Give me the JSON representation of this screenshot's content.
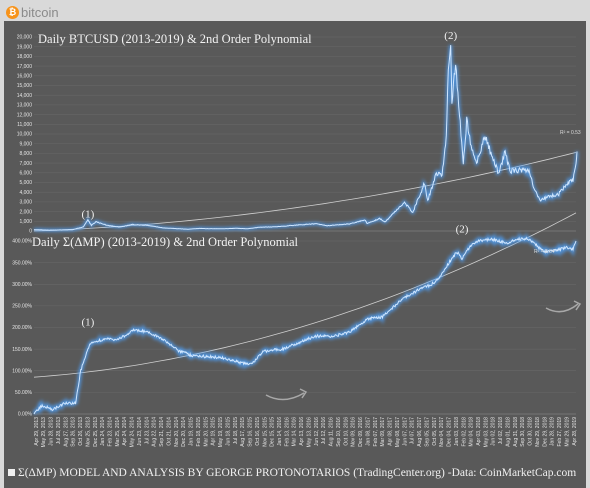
{
  "brand": {
    "icon": "bitcoin-logo-icon",
    "coin_glyph": "₿",
    "word": "bitcoin",
    "accent": "#f7931a"
  },
  "colors": {
    "panel_bg": "#595959",
    "series": "#cfe6ff",
    "glow": "#4da3ff",
    "trend": "#d0d0d0",
    "grid": "#6a6a6a",
    "text": "#f2f2f2"
  },
  "footer": {
    "text": "Σ(ΔMP) MODEL AND ANALYSIS BY GEORGE PROTONOTARIOS (TradingCenter.org) -Data: CoinMarketCap.com"
  },
  "x_axis_labels": [
    "Apr 29, 2013",
    "May 29, 2013",
    "Jun 28, 2013",
    "Jul 28, 2013",
    "Aug 27, 2013",
    "Sep 26, 2013",
    "Oct 26, 2013",
    "Nov 25, 2013",
    "Dec 25, 2013",
    "Jan 24, 2014",
    "Feb 23, 2014",
    "Mar 25, 2014",
    "Apr 24, 2014",
    "May 24, 2014",
    "Jun 23, 2014",
    "Jul 23, 2014",
    "Aug 22, 2014",
    "Sep 21, 2014",
    "Oct 21, 2014",
    "Nov 20, 2014",
    "Dec 20, 2014",
    "Jan 19, 2015",
    "Feb 18, 2015",
    "Mar 20, 2015",
    "Apr 19, 2015",
    "May 19, 2015",
    "Jun 18, 2015",
    "Jul 18, 2015",
    "Aug 17, 2015",
    "Sep 16, 2015",
    "Oct 16, 2015",
    "Nov 15, 2015",
    "Dec 15, 2015",
    "Jan 14, 2016",
    "Feb 13, 2016",
    "Mar 14, 2016",
    "Apr 13, 2016",
    "May 13, 2016",
    "Jun 12, 2016",
    "Jul 12, 2016",
    "Aug 11, 2016",
    "Sep 10, 2016",
    "Oct 10, 2016",
    "Nov 09, 2016",
    "Dec 09, 2016",
    "Jan 08, 2017",
    "Feb 07, 2017",
    "Mar 09, 2017",
    "Apr 08, 2017",
    "May 08, 2017",
    "Jun 07, 2017",
    "Jul 07, 2017",
    "Aug 06, 2017",
    "Sep 05, 2017",
    "Oct 05, 2017",
    "Nov 04, 2017",
    "Dec 04, 2017",
    "Jan 03, 2018",
    "Feb 02, 2018",
    "Mar 04, 2018",
    "Apr 03, 2018",
    "May 03, 2018",
    "Jun 02, 2018",
    "Jul 02, 2018",
    "Aug 01, 2018",
    "Aug 31, 2018",
    "Sep 30, 2018",
    "Oct 30, 2018",
    "Nov 29, 2018",
    "Dec 29, 2018",
    "Jan 28, 2019",
    "Feb 27, 2019",
    "Mar 29, 2019",
    "Apr 28, 2019"
  ],
  "chart_data": [
    {
      "type": "line",
      "title": "Daily BTCUSD (2013-2019) & 2nd Order Polynomial",
      "ylim": [
        0,
        20000
      ],
      "y_ticks": [
        0,
        1000,
        2000,
        3000,
        4000,
        5000,
        6000,
        7000,
        8000,
        9000,
        10000,
        11000,
        12000,
        13000,
        14000,
        15000,
        16000,
        17000,
        18000,
        19000,
        20000
      ],
      "y_tick_labels": [
        "0",
        "1,000",
        "2,000",
        "3,000",
        "4,000",
        "5,000",
        "6,000",
        "7,000",
        "8,000",
        "9,000",
        "10,000",
        "11,000",
        "12,000",
        "13,000",
        "14,000",
        "15,000",
        "16,000",
        "17,000",
        "18,000",
        "19,000",
        "20,000"
      ],
      "x_range": [
        "2013-04-29",
        "2019-05-10"
      ],
      "grid": true,
      "series": [
        {
          "kind": "price",
          "points": [
            [
              "2013-04-29",
              140
            ],
            [
              "2013-07-01",
              90
            ],
            [
              "2013-10-01",
              125
            ],
            [
              "2013-11-15",
              420
            ],
            [
              "2013-12-04",
              1150
            ],
            [
              "2013-12-18",
              580
            ],
            [
              "2014-01-06",
              950
            ],
            [
              "2014-02-20",
              600
            ],
            [
              "2014-04-10",
              400
            ],
            [
              "2014-06-03",
              660
            ],
            [
              "2014-08-01",
              590
            ],
            [
              "2014-10-05",
              320
            ],
            [
              "2015-01-14",
              180
            ],
            [
              "2015-03-01",
              260
            ],
            [
              "2015-06-01",
              225
            ],
            [
              "2015-08-01",
              280
            ],
            [
              "2015-09-15",
              230
            ],
            [
              "2015-11-04",
              400
            ],
            [
              "2016-01-01",
              430
            ],
            [
              "2016-06-16",
              750
            ],
            [
              "2016-08-02",
              550
            ],
            [
              "2016-11-01",
              730
            ],
            [
              "2017-01-04",
              1130
            ],
            [
              "2017-01-11",
              780
            ],
            [
              "2017-03-03",
              1280
            ],
            [
              "2017-03-25",
              940
            ],
            [
              "2017-05-25",
              2500
            ],
            [
              "2017-06-12",
              2950
            ],
            [
              "2017-07-16",
              1940
            ],
            [
              "2017-09-01",
              4900
            ],
            [
              "2017-09-15",
              3200
            ],
            [
              "2017-10-20",
              6000
            ],
            [
              "2017-11-12",
              5800
            ],
            [
              "2017-11-29",
              9900
            ],
            [
              "2017-12-07",
              16500
            ],
            [
              "2017-12-17",
              19500
            ],
            [
              "2017-12-22",
              13500
            ],
            [
              "2018-01-06",
              17100
            ],
            [
              "2018-02-06",
              6900
            ],
            [
              "2018-02-20",
              11400
            ],
            [
              "2018-03-10",
              8900
            ],
            [
              "2018-04-01",
              6900
            ],
            [
              "2018-05-05",
              9700
            ],
            [
              "2018-06-29",
              5900
            ],
            [
              "2018-07-26",
              8200
            ],
            [
              "2018-08-14",
              6200
            ],
            [
              "2018-10-31",
              6300
            ],
            [
              "2018-11-20",
              4500
            ],
            [
              "2018-12-15",
              3200
            ],
            [
              "2019-01-20",
              3550
            ],
            [
              "2019-03-01",
              3800
            ],
            [
              "2019-04-02",
              4900
            ],
            [
              "2019-04-28",
              5200
            ],
            [
              "2019-05-10",
              7000
            ],
            [
              "2019-05-14",
              8200
            ]
          ]
        },
        {
          "kind": "trend",
          "points": [
            [
              "2013-04-29",
              0
            ],
            [
              "2019-05-10",
              8100
            ]
          ]
        }
      ],
      "r_squared_label": "R² = 0.53",
      "annotations": [
        {
          "label": "(1)",
          "date": "2013-12-04",
          "value": 1400
        },
        {
          "label": "(2)",
          "date": "2017-12-17",
          "value": 19800
        }
      ]
    },
    {
      "type": "line",
      "title": "Daily Σ(ΔMP) (2013-2019) & 2nd Order Polynomial",
      "ylim": [
        0,
        400
      ],
      "y_ticks": [
        0,
        50,
        100,
        150,
        200,
        250,
        300,
        350,
        400
      ],
      "y_tick_labels": [
        "0.00%",
        "50.00%",
        "100.00%",
        "150.00%",
        "200.00%",
        "250.00%",
        "300.00%",
        "350.00%",
        "400.00%"
      ],
      "x_range": [
        "2013-04-29",
        "2019-05-10"
      ],
      "grid": true,
      "series": [
        {
          "kind": "sigma",
          "points": [
            [
              "2013-04-29",
              0
            ],
            [
              "2013-06-01",
              20
            ],
            [
              "2013-07-15",
              10
            ],
            [
              "2013-09-01",
              25
            ],
            [
              "2013-10-15",
              25
            ],
            [
              "2013-11-05",
              100
            ],
            [
              "2013-12-04",
              150
            ],
            [
              "2013-12-15",
              165
            ],
            [
              "2014-01-20",
              170
            ],
            [
              "2014-02-20",
              175
            ],
            [
              "2014-04-01",
              170
            ],
            [
              "2014-06-10",
              195
            ],
            [
              "2014-08-01",
              190
            ],
            [
              "2014-10-15",
              170
            ],
            [
              "2014-12-01",
              148
            ],
            [
              "2015-02-01",
              135
            ],
            [
              "2015-06-01",
              130
            ],
            [
              "2015-08-20",
              118
            ],
            [
              "2015-10-01",
              115
            ],
            [
              "2015-11-15",
              145
            ],
            [
              "2016-02-01",
              150
            ],
            [
              "2016-06-15",
              180
            ],
            [
              "2016-09-01",
              180
            ],
            [
              "2016-11-01",
              190
            ],
            [
              "2017-01-15",
              220
            ],
            [
              "2017-03-15",
              225
            ],
            [
              "2017-06-01",
              265
            ],
            [
              "2017-08-01",
              285
            ],
            [
              "2017-10-01",
              300
            ],
            [
              "2017-11-01",
              315
            ],
            [
              "2017-12-10",
              350
            ],
            [
              "2018-01-10",
              375
            ],
            [
              "2018-02-01",
              360
            ],
            [
              "2018-03-15",
              395
            ],
            [
              "2018-04-15",
              400
            ],
            [
              "2018-06-01",
              405
            ],
            [
              "2018-08-01",
              395
            ],
            [
              "2018-09-15",
              405
            ],
            [
              "2018-11-01",
              405
            ],
            [
              "2018-11-30",
              390
            ],
            [
              "2019-01-01",
              375
            ],
            [
              "2019-02-15",
              378
            ],
            [
              "2019-04-01",
              385
            ],
            [
              "2019-04-28",
              380
            ],
            [
              "2019-05-10",
              400
            ]
          ]
        },
        {
          "kind": "trend",
          "points": [
            [
              "2013-04-29",
              85
            ],
            [
              "2019-05-10",
              465
            ]
          ]
        }
      ],
      "r_squared_label": "R² = 0.84",
      "annotations": [
        {
          "label": "(1)",
          "date": "2013-12-04",
          "value": 205
        },
        {
          "label": "(2)",
          "date": "2018-02-01",
          "value": 420
        }
      ]
    }
  ]
}
